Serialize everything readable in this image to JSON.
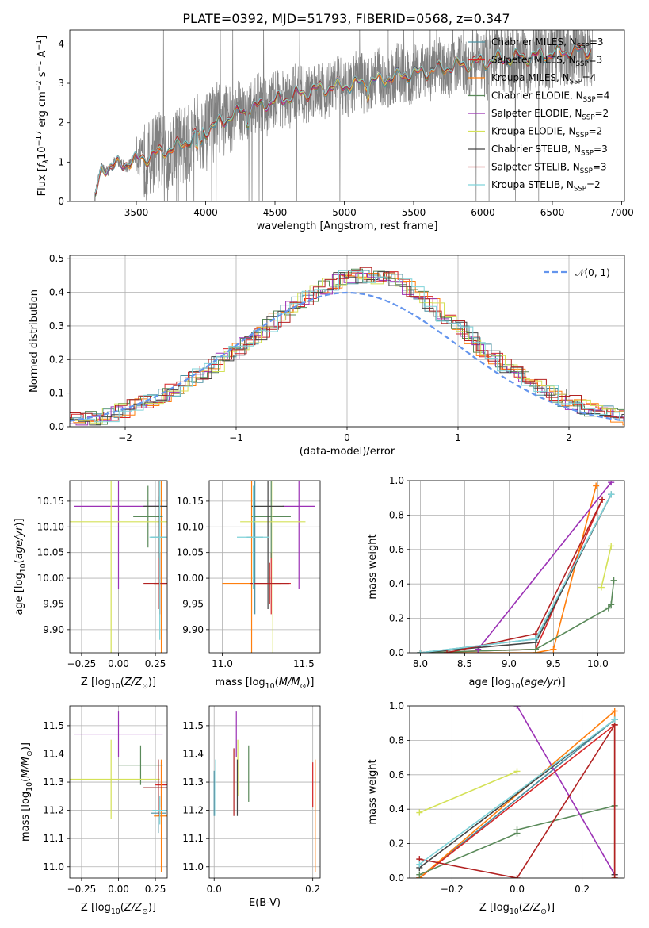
{
  "title": "PLATE=0392, MJD=51793, FIBERID=0568, z=0.347",
  "colors": [
    "#4a8fa0",
    "#d62728",
    "#ff7f0e",
    "#5a8a5a",
    "#9b30b5",
    "#d4e157",
    "#444444",
    "#b22222",
    "#7fd3d9"
  ],
  "chart_data": [
    {
      "panel": "spectrum",
      "type": "line",
      "xlabel": "wavelength [Angstrom, rest frame]",
      "ylabel": "Flux [f_λ 10^-17 erg cm^-2 s^-1 A^-1]",
      "xlim": [
        3020,
        7020
      ],
      "ylim": [
        0,
        4.35
      ],
      "xticks": [
        3500,
        4000,
        4500,
        5000,
        5500,
        6000,
        6500,
        7000
      ],
      "yticks": [
        0,
        1,
        2,
        3,
        4
      ],
      "legend_position": "top-right",
      "series": [
        {
          "name": "Chabrier MILES, N_SSP=3"
        },
        {
          "name": "Salpeter MILES, N_SSP=3"
        },
        {
          "name": "Kroupa MILES, N_SSP=4"
        },
        {
          "name": "Chabrier ELODIE, N_SSP=4"
        },
        {
          "name": "Salpeter ELODIE, N_SSP=2"
        },
        {
          "name": "Kroupa ELODIE, N_SSP=2"
        },
        {
          "name": "Chabrier STELIB, N_SSP=3"
        },
        {
          "name": "Salpeter STELIB, N_SSP=3"
        },
        {
          "name": "Kroupa STELIB, N_SSP=2"
        }
      ],
      "continuum_x": [
        3200,
        3250,
        3400,
        3600,
        3800,
        4000,
        4200,
        4400,
        4600,
        4800,
        5000,
        5200,
        5400,
        5600,
        5800,
        6000,
        6200,
        6400,
        6600,
        6780
      ],
      "continuum_y": [
        0.0,
        0.85,
        0.95,
        1.15,
        1.4,
        1.8,
        2.2,
        2.45,
        2.65,
        2.85,
        2.95,
        3.05,
        3.2,
        3.3,
        3.45,
        3.55,
        3.65,
        3.7,
        3.8,
        3.85
      ]
    },
    {
      "panel": "residual-histogram",
      "type": "line",
      "xlabel": "(data-model)/error",
      "ylabel": "Normed distribution",
      "xlim": [
        -2.5,
        2.5
      ],
      "ylim": [
        0,
        0.51
      ],
      "xticks": [
        -2,
        -1,
        0,
        1,
        2
      ],
      "yticks": [
        0.0,
        0.1,
        0.2,
        0.3,
        0.4,
        0.5
      ],
      "reference_curve": "N(0,1)",
      "legend_position": "top-right"
    },
    {
      "panel": "age-vs-Z",
      "type": "scatter",
      "xlabel": "Z [log10(Z/Z⊙)]",
      "ylabel": "age  [log10(age/yr)]",
      "xlim": [
        -0.33,
        0.33
      ],
      "ylim": [
        9.855,
        10.19
      ],
      "xticks": [
        -0.25,
        0.0,
        0.25
      ],
      "yticks": [
        9.9,
        9.95,
        10.0,
        10.05,
        10.1,
        10.15
      ],
      "points": [
        {
          "x": 0.27,
          "y": 10.08,
          "xerr": 0.05,
          "yerr": 0.08
        },
        {
          "x": 0.28,
          "y": 9.99,
          "xerr": 0.04,
          "yerr": 0.06
        },
        {
          "x": 0.29,
          "y": 9.99,
          "xerr": 0.05,
          "yerr": 0.2
        },
        {
          "x": 0.2,
          "y": 10.12,
          "xerr": 0.1,
          "yerr": 0.06
        },
        {
          "x": 0.0,
          "y": 10.14,
          "xerr": 0.3,
          "yerr": 0.16
        },
        {
          "x": -0.05,
          "y": 10.11,
          "xerr": 0.38,
          "yerr": 0.26
        },
        {
          "x": 0.27,
          "y": 10.14,
          "xerr": 0.1,
          "yerr": 0.2
        },
        {
          "x": 0.27,
          "y": 9.99,
          "xerr": 0.1,
          "yerr": 0.05
        },
        {
          "x": 0.28,
          "y": 10.08,
          "xerr": 0.07,
          "yerr": 0.2
        }
      ]
    },
    {
      "panel": "age-vs-mass",
      "type": "scatter",
      "xlabel": "mass [log10(M/M⊙)]",
      "ylabel": "",
      "xlim": [
        10.92,
        11.6
      ],
      "ylim": [
        9.855,
        10.19
      ],
      "xticks": [
        11.0,
        11.5
      ],
      "yticks": [
        9.9,
        9.95,
        10.0,
        10.05,
        10.1,
        10.15
      ],
      "points": [
        {
          "x": 11.2,
          "y": 10.08,
          "xerr": 0.05,
          "yerr": 0.15
        },
        {
          "x": 11.3,
          "y": 9.99,
          "xerr": 0.12,
          "yerr": 0.06
        },
        {
          "x": 11.18,
          "y": 9.99,
          "xerr": 0.18,
          "yerr": 0.2
        },
        {
          "x": 11.3,
          "y": 10.12,
          "xerr": 0.12,
          "yerr": 0.08
        },
        {
          "x": 11.47,
          "y": 10.14,
          "xerr": 0.1,
          "yerr": 0.16
        },
        {
          "x": 11.31,
          "y": 10.11,
          "xerr": 0.2,
          "yerr": 0.26
        },
        {
          "x": 11.28,
          "y": 10.14,
          "xerr": 0.1,
          "yerr": 0.2
        },
        {
          "x": 11.29,
          "y": 9.99,
          "xerr": 0.12,
          "yerr": 0.04
        },
        {
          "x": 11.19,
          "y": 10.08,
          "xerr": 0.1,
          "yerr": 0.1
        }
      ]
    },
    {
      "panel": "mass-weight-vs-age",
      "type": "line",
      "xlabel": "age  [log10(age/yr)]",
      "ylabel": "mass weight",
      "xlim": [
        7.88,
        10.3
      ],
      "ylim": [
        0,
        1
      ],
      "xticks": [
        8.0,
        8.5,
        9.0,
        9.5,
        10.0
      ],
      "yticks": [
        0.0,
        0.2,
        0.4,
        0.6,
        0.8,
        1.0
      ],
      "series": [
        {
          "x": [
            8.0,
            9.3,
            10.15
          ],
          "y": [
            0.0,
            0.08,
            0.92
          ]
        },
        {
          "x": [
            8.0,
            9.3,
            10.05
          ],
          "y": [
            0.0,
            0.02,
            0.89
          ]
        },
        {
          "x": [
            8.0,
            9.3,
            9.5,
            9.98
          ],
          "y": [
            0.0,
            0.0,
            0.02,
            0.97
          ]
        },
        {
          "x": [
            8.0,
            9.3,
            10.12,
            10.15,
            10.18
          ],
          "y": [
            0.0,
            0.02,
            0.26,
            0.28,
            0.42
          ]
        },
        {
          "x": [
            8.65,
            10.15
          ],
          "y": [
            0.02,
            0.99
          ]
        },
        {
          "x": [
            10.04,
            10.15
          ],
          "y": [
            0.38,
            0.62
          ]
        },
        {
          "x": [
            8.0,
            9.3,
            10.15
          ],
          "y": [
            0.0,
            0.06,
            0.92
          ]
        },
        {
          "x": [
            8.3,
            9.3,
            10.05
          ],
          "y": [
            0.0,
            0.11,
            0.89
          ]
        },
        {
          "x": [
            8.0,
            9.3,
            10.15
          ],
          "y": [
            0.0,
            0.08,
            0.92
          ]
        }
      ]
    },
    {
      "panel": "mass-vs-Z",
      "type": "scatter",
      "xlabel": "Z [log10(Z/Z⊙)]",
      "ylabel": "mass [log10(M/M⊙)]",
      "xlim": [
        -0.33,
        0.33
      ],
      "ylim": [
        10.96,
        11.57
      ],
      "xticks": [
        -0.25,
        0.0,
        0.25
      ],
      "yticks": [
        11.0,
        11.1,
        11.2,
        11.3,
        11.4,
        11.5
      ],
      "points": [
        {
          "x": 0.27,
          "y": 11.19,
          "xerr": 0.05,
          "yerr": 0.07
        },
        {
          "x": 0.29,
          "y": 11.29,
          "xerr": 0.04,
          "yerr": 0.08
        },
        {
          "x": 0.29,
          "y": 11.18,
          "xerr": 0.05,
          "yerr": 0.2
        },
        {
          "x": 0.15,
          "y": 11.36,
          "xerr": 0.15,
          "yerr": 0.07
        },
        {
          "x": 0.0,
          "y": 11.47,
          "xerr": 0.3,
          "yerr": 0.08
        },
        {
          "x": -0.05,
          "y": 11.31,
          "xerr": 0.33,
          "yerr": 0.14
        },
        {
          "x": 0.27,
          "y": 11.28,
          "xerr": 0.1,
          "yerr": 0.1
        },
        {
          "x": 0.27,
          "y": 11.28,
          "xerr": 0.1,
          "yerr": 0.1
        },
        {
          "x": 0.28,
          "y": 11.2,
          "xerr": 0.05,
          "yerr": 0.05
        }
      ]
    },
    {
      "panel": "mass-vs-EBV",
      "type": "scatter",
      "xlabel": "E(B-V)",
      "ylabel": "",
      "xlim": [
        -0.01,
        0.215
      ],
      "ylim": [
        10.96,
        11.57
      ],
      "xticks": [
        0.0,
        0.2
      ],
      "yticks": [
        11.0,
        11.1,
        11.2,
        11.3,
        11.4,
        11.5
      ],
      "points": [
        {
          "x": 0.0,
          "y": 11.26,
          "yerr": 0.08
        },
        {
          "x": 0.2,
          "y": 11.29,
          "yerr": 0.08
        },
        {
          "x": 0.205,
          "y": 11.18,
          "yerr": 0.2
        },
        {
          "x": 0.07,
          "y": 11.33,
          "yerr": 0.1
        },
        {
          "x": 0.045,
          "y": 11.47,
          "yerr": 0.08
        },
        {
          "x": 0.048,
          "y": 11.35,
          "yerr": 0.1
        },
        {
          "x": 0.047,
          "y": 11.28,
          "yerr": 0.1
        },
        {
          "x": 0.04,
          "y": 11.3,
          "yerr": 0.12
        },
        {
          "x": 0.003,
          "y": 11.28,
          "yerr": 0.1
        }
      ]
    },
    {
      "panel": "mass-weight-vs-Z",
      "type": "line",
      "xlabel": "Z [log10(Z/Z⊙)]",
      "ylabel": "mass weight",
      "xlim": [
        -0.33,
        0.33
      ],
      "ylim": [
        0,
        1
      ],
      "xticks": [
        -0.2,
        0.0,
        0.2
      ],
      "yticks": [
        0.0,
        0.2,
        0.4,
        0.6,
        0.8,
        1.0
      ],
      "series": [
        {
          "x": [
            -0.3,
            0.3
          ],
          "y": [
            0.0,
            0.92
          ]
        },
        {
          "x": [
            -0.3,
            0.3
          ],
          "y": [
            0.0,
            0.89
          ]
        },
        {
          "x": [
            -0.3,
            0.3,
            0.3
          ],
          "y": [
            0.0,
            0.97,
            0.0
          ]
        },
        {
          "x": [
            -0.3,
            0.0,
            0.0,
            0.3
          ],
          "y": [
            0.02,
            0.26,
            0.28,
            0.42
          ]
        },
        {
          "x": [
            0.0,
            0.3
          ],
          "y": [
            1.0,
            0.02
          ]
        },
        {
          "x": [
            -0.3,
            0.0
          ],
          "y": [
            0.38,
            0.62
          ]
        },
        {
          "x": [
            -0.3,
            0.3,
            0.3
          ],
          "y": [
            0.06,
            0.92,
            0.02
          ]
        },
        {
          "x": [
            -0.3,
            0.0,
            0.3,
            0.3
          ],
          "y": [
            0.11,
            0.0,
            0.89,
            0.0
          ]
        },
        {
          "x": [
            -0.3,
            0.3
          ],
          "y": [
            0.08,
            0.92
          ]
        }
      ]
    }
  ]
}
